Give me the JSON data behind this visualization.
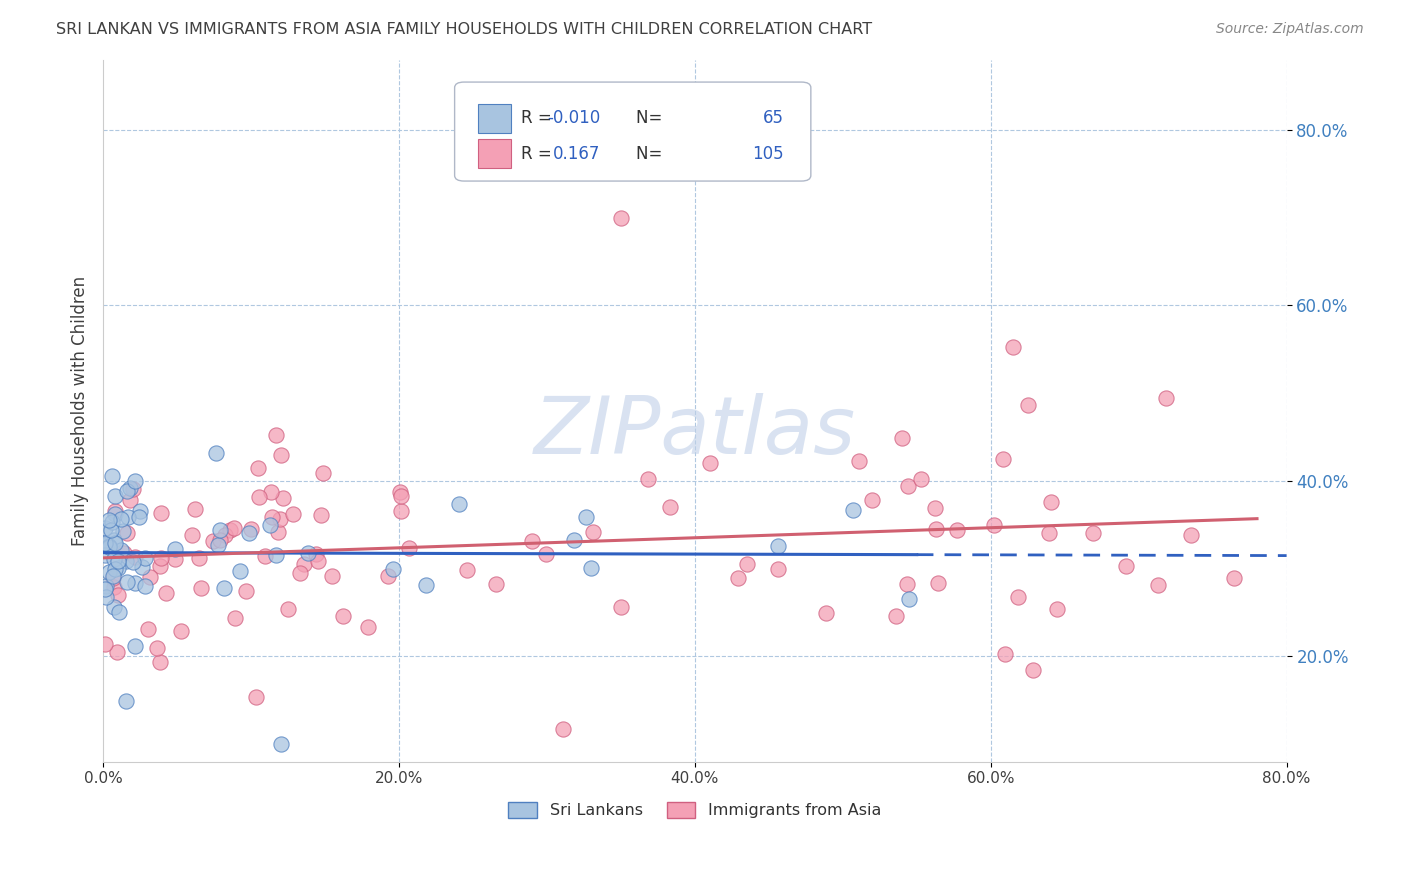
{
  "title": "SRI LANKAN VS IMMIGRANTS FROM ASIA FAMILY HOUSEHOLDS WITH CHILDREN CORRELATION CHART",
  "source": "Source: ZipAtlas.com",
  "ylabel": "Family Households with Children",
  "legend_label1": "Sri Lankans",
  "legend_label2": "Immigrants from Asia",
  "R1": -0.01,
  "N1": 65,
  "R2": 0.167,
  "N2": 105,
  "xlim": [
    0.0,
    0.8
  ],
  "ylim": [
    0.08,
    0.88
  ],
  "yticks": [
    0.2,
    0.4,
    0.6,
    0.8
  ],
  "xticks": [
    0.0,
    0.2,
    0.4,
    0.6,
    0.8
  ],
  "color_blue": "#a8c4e0",
  "color_pink": "#f4a0b5",
  "edge_blue": "#5080c0",
  "edge_pink": "#d06080",
  "line_blue": "#3060c0",
  "line_pink": "#d06070",
  "watermark": "ZIPatlas",
  "watermark_color": "#c0d0e8",
  "background_color": "#ffffff",
  "grid_color": "#b0c8e0",
  "title_color": "#404040",
  "source_color": "#888888",
  "ylabel_color": "#404040",
  "ytick_color": "#4080c0",
  "xtick_color": "#404040",
  "seed": 7
}
